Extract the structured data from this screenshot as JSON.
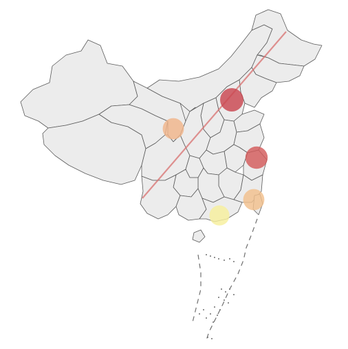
{
  "map": {
    "title": "",
    "region": "China",
    "base_fill": "#ececec",
    "border_color": "#5a5a5a",
    "reference_line": {
      "name": "",
      "color": "#d9706f"
    },
    "points": [
      {
        "id": "north",
        "value": 5,
        "color": "#c9454f"
      },
      {
        "id": "west",
        "value": 3,
        "color": "#f0b48a"
      },
      {
        "id": "east",
        "value": 4,
        "color": "#d35a5a"
      },
      {
        "id": "southeast",
        "value": 3,
        "color": "#f2c08c"
      },
      {
        "id": "south",
        "value": 2,
        "color": "#f7ef9c"
      }
    ]
  }
}
